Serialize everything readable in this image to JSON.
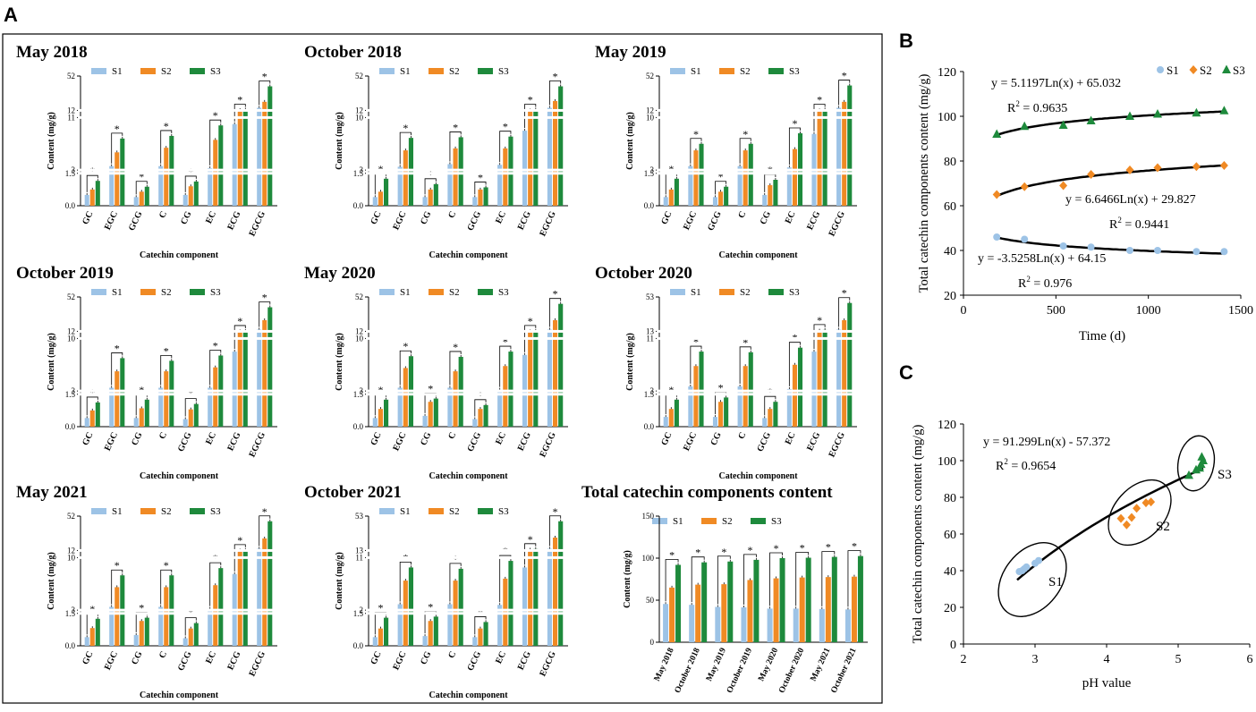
{
  "panel_labels": {
    "a": "A",
    "b": "B",
    "c": "C"
  },
  "colors": {
    "S1": "#9dc3e6",
    "S2": "#f08a24",
    "S3": "#1e8a3c",
    "fit": "#000000"
  },
  "common": {
    "ylabel": "Content (mg/g)",
    "xlabel": "Catechin component",
    "legend": [
      "S1",
      "S2",
      "S3"
    ],
    "star": "*"
  },
  "chart_data": [
    {
      "id": "may2018",
      "type": "bar",
      "title": "May 2018",
      "categories": [
        "GC",
        "EGC",
        "GCG",
        "C",
        "CG",
        "EC",
        "ECG",
        "EGCG"
      ],
      "y_ticks": [
        "52",
        "12",
        "11",
        "3",
        "1.5",
        "0.0"
      ],
      "series": [
        {
          "name": "S1",
          "values": [
            0.5,
            3.6,
            0.4,
            3.6,
            0.5,
            3.3,
            10.0,
            15.0
          ]
        },
        {
          "name": "S2",
          "values": [
            0.75,
            5.7,
            0.65,
            6.4,
            0.9,
            7.6,
            12.4,
            22.0
          ]
        },
        {
          "name": "S3",
          "values": [
            1.15,
            7.8,
            0.88,
            8.2,
            1.12,
            9.8,
            13.0,
            40.0
          ]
        }
      ]
    },
    {
      "id": "oct2018",
      "type": "bar",
      "title": "October 2018",
      "categories": [
        "GC",
        "EGC",
        "CG",
        "C",
        "GCG",
        "EC",
        "ECG",
        "EGCG"
      ],
      "y_ticks": [
        "52",
        "12",
        "10",
        "3",
        "1.5",
        "0.0"
      ],
      "series": [
        {
          "name": "S1",
          "values": [
            0.4,
            3.5,
            0.4,
            3.9,
            0.4,
            3.8,
            9.0,
            15.0
          ]
        },
        {
          "name": "S2",
          "values": [
            0.65,
            6.0,
            0.75,
            6.3,
            0.75,
            6.3,
            12.0,
            23.0
          ]
        },
        {
          "name": "S3",
          "values": [
            1.25,
            7.9,
            1.0,
            8.0,
            0.85,
            8.1,
            13.0,
            40.0
          ]
        }
      ]
    },
    {
      "id": "may2019",
      "type": "bar",
      "title": "May 2019",
      "categories": [
        "GC",
        "EGC",
        "GCG",
        "C",
        "CG",
        "EC",
        "ECG",
        "EGCG"
      ],
      "y_ticks": [
        "52",
        "12",
        "10",
        "3",
        "1.5",
        "0.0"
      ],
      "series": [
        {
          "name": "S1",
          "values": [
            0.4,
            3.6,
            0.4,
            3.6,
            0.5,
            3.4,
            8.5,
            15.0
          ]
        },
        {
          "name": "S2",
          "values": [
            0.75,
            6.0,
            0.65,
            6.0,
            0.95,
            6.2,
            12.0,
            22.0
          ]
        },
        {
          "name": "S3",
          "values": [
            1.25,
            7.0,
            0.88,
            7.0,
            1.2,
            8.6,
            13.0,
            41.0
          ]
        }
      ]
    },
    {
      "id": "oct2019",
      "type": "bar",
      "title": "October 2019",
      "categories": [
        "GC",
        "EGC",
        "CG",
        "C",
        "GCG",
        "EC",
        "ECG",
        "EGCG"
      ],
      "y_ticks": [
        "52",
        "12",
        "10",
        "3",
        "1.5",
        "0.0"
      ],
      "series": [
        {
          "name": "S1",
          "values": [
            0.4,
            3.5,
            0.4,
            3.5,
            0.35,
            3.5,
            9.0,
            14.0
          ]
        },
        {
          "name": "S2",
          "values": [
            0.75,
            6.0,
            0.85,
            6.0,
            0.8,
            6.6,
            12.0,
            25.0
          ]
        },
        {
          "name": "S3",
          "values": [
            1.12,
            8.0,
            1.25,
            7.6,
            1.05,
            8.4,
            12.5,
            40.0
          ]
        }
      ]
    },
    {
      "id": "may2020",
      "type": "bar",
      "title": "May 2020",
      "categories": [
        "GC",
        "EGC",
        "CG",
        "C",
        "GCG",
        "EC",
        "ECG",
        "EGCG"
      ],
      "y_ticks": [
        "52",
        "12",
        "10",
        "3",
        "1.5",
        "0.0"
      ],
      "series": [
        {
          "name": "S1",
          "values": [
            0.4,
            3.5,
            0.5,
            3.5,
            0.35,
            3.2,
            8.5,
            14.0
          ]
        },
        {
          "name": "S2",
          "values": [
            0.82,
            6.5,
            1.15,
            6.0,
            0.82,
            6.8,
            12.0,
            25.0
          ]
        },
        {
          "name": "S3",
          "values": [
            1.25,
            8.3,
            1.3,
            8.2,
            1.0,
            9.0,
            12.6,
            44.0
          ]
        }
      ]
    },
    {
      "id": "oct2020",
      "type": "bar",
      "title": "October 2020",
      "categories": [
        "GC",
        "EGC",
        "CG",
        "C",
        "GCG",
        "EC",
        "ECG",
        "EGCG"
      ],
      "y_ticks": [
        "53",
        "13",
        "11",
        "3",
        "1.5",
        "0.0"
      ],
      "series": [
        {
          "name": "S1",
          "values": [
            0.45,
            3.7,
            0.45,
            3.7,
            0.4,
            3.3,
            9.0,
            14.0
          ]
        },
        {
          "name": "S2",
          "values": [
            0.82,
            6.8,
            1.15,
            6.8,
            0.82,
            7.0,
            12.8,
            25.0
          ]
        },
        {
          "name": "S3",
          "values": [
            1.25,
            9.0,
            1.35,
            8.9,
            1.15,
            9.6,
            13.6,
            45.0
          ]
        }
      ]
    },
    {
      "id": "may2021",
      "type": "bar",
      "title": "May 2021",
      "categories": [
        "GC",
        "EGC",
        "CG",
        "C",
        "GCG",
        "EC",
        "ECG",
        "EGCG"
      ],
      "y_ticks": [
        "52",
        "12",
        "10",
        "3",
        "1.5",
        "0.0"
      ],
      "series": [
        {
          "name": "S1",
          "values": [
            0.4,
            3.5,
            0.5,
            3.5,
            0.35,
            3.2,
            8.5,
            14.0
          ]
        },
        {
          "name": "S2",
          "values": [
            0.82,
            6.5,
            1.15,
            6.5,
            0.8,
            6.8,
            12.0,
            26.0
          ]
        },
        {
          "name": "S3",
          "values": [
            1.25,
            8.3,
            1.3,
            8.3,
            1.05,
            9.4,
            12.6,
            46.0
          ]
        }
      ]
    },
    {
      "id": "oct2021",
      "type": "bar",
      "title": "October 2021",
      "categories": [
        "GC",
        "EGC",
        "CG",
        "C",
        "GCG",
        "EC",
        "ECG",
        "EGCG"
      ],
      "y_ticks": [
        "53",
        "13",
        "11",
        "2",
        "1.5",
        "0.0"
      ],
      "series": [
        {
          "name": "S1",
          "values": [
            0.4,
            3.9,
            0.45,
            3.9,
            0.4,
            3.8,
            9.5,
            14.0
          ]
        },
        {
          "name": "S2",
          "values": [
            0.8,
            7.5,
            1.15,
            7.5,
            0.8,
            7.8,
            13.0,
            27.0
          ]
        },
        {
          "name": "S3",
          "values": [
            1.3,
            9.5,
            1.35,
            9.3,
            1.1,
            10.5,
            13.7,
            46.0
          ]
        }
      ]
    },
    {
      "id": "total",
      "type": "bar",
      "title": "Total catechin components content",
      "categories": [
        "May 2018",
        "October 2018",
        "May 2019",
        "October 2019",
        "May 2020",
        "October 2020",
        "May 2021",
        "October 2021"
      ],
      "y_ticks": [
        "150",
        "100",
        "50",
        "0"
      ],
      "ylim": [
        0,
        150
      ],
      "series": [
        {
          "name": "S1",
          "values": [
            45.5,
            44.5,
            42.0,
            41.5,
            40.0,
            40.0,
            39.5,
            39.0
          ]
        },
        {
          "name": "S2",
          "values": [
            65.0,
            68.5,
            69.0,
            74.0,
            76.0,
            77.0,
            77.5,
            78.0
          ]
        },
        {
          "name": "S3",
          "values": [
            92.0,
            95.0,
            96.0,
            98.0,
            100.0,
            100.5,
            101.5,
            102.5
          ]
        }
      ]
    },
    {
      "id": "time",
      "type": "scatter",
      "xlabel": "Time (d)",
      "ylabel": "Total catechin components content (mg/g)",
      "xlim": [
        0,
        1500
      ],
      "ylim": [
        20,
        120
      ],
      "x_ticks": [
        "0",
        "500",
        "1000",
        "1500"
      ],
      "y_ticks": [
        "20",
        "40",
        "60",
        "80",
        "100",
        "120"
      ],
      "legend": [
        "S1",
        "S2",
        "S3"
      ],
      "series": [
        {
          "name": "S1",
          "x": [
            180,
            330,
            540,
            690,
            900,
            1050,
            1260,
            1410
          ],
          "y": [
            46,
            45,
            42,
            41.5,
            40,
            40,
            39.5,
            39.5
          ]
        },
        {
          "name": "S2",
          "x": [
            180,
            330,
            540,
            690,
            900,
            1050,
            1260,
            1410
          ],
          "y": [
            65,
            68.5,
            69,
            74,
            76,
            77,
            77.5,
            78
          ]
        },
        {
          "name": "S3",
          "x": [
            180,
            330,
            540,
            690,
            900,
            1050,
            1260,
            1410
          ],
          "y": [
            92,
            95.5,
            96,
            98,
            100,
            101,
            101.5,
            102.5
          ]
        }
      ],
      "fits": [
        {
          "series": "S3",
          "a": 5.1197,
          "b": 65.032
        },
        {
          "series": "S2",
          "a": 6.6466,
          "b": 29.827
        },
        {
          "series": "S1",
          "a": -3.5258,
          "b": 64.15
        }
      ],
      "annotations": {
        "s3_eq": "y = 5.1197Ln(x) + 65.032",
        "s3_r2": "R",
        "s3_r2v": " = 0.9635",
        "s2_eq": "y = 6.6466Ln(x) + 29.827",
        "s2_r2": "R",
        "s2_r2v": " = 0.9441",
        "s1_eq": "y = -3.5258Ln(x) + 64.15",
        "s1_r2": "R",
        "s1_r2v": " = 0.976",
        "sup": "2"
      }
    },
    {
      "id": "ph",
      "type": "scatter",
      "xlabel": "pH value",
      "ylabel": "Total catechin components content (mg/g)",
      "xlim": [
        2,
        6
      ],
      "ylim": [
        0,
        120
      ],
      "x_ticks": [
        "2",
        "3",
        "4",
        "5",
        "6"
      ],
      "y_ticks": [
        "0",
        "20",
        "40",
        "60",
        "80",
        "100",
        "120"
      ],
      "series": [
        {
          "name": "S1",
          "x": [
            2.78,
            2.82,
            2.85,
            2.88,
            3.0,
            3.05
          ],
          "y": [
            39.5,
            40,
            41,
            42,
            44,
            45.5
          ]
        },
        {
          "name": "S2",
          "x": [
            4.2,
            4.28,
            4.35,
            4.42,
            4.55,
            4.62
          ],
          "y": [
            68.5,
            65,
            69,
            74,
            77,
            77.5
          ]
        },
        {
          "name": "S3",
          "x": [
            5.15,
            5.25,
            5.3,
            5.32,
            5.35,
            5.33
          ],
          "y": [
            92,
            95,
            96,
            98,
            100,
            102
          ]
        }
      ],
      "fit": {
        "a": 91.299,
        "b": -57.372
      },
      "annotations": {
        "eq": "y = 91.299Ln(x) - 57.372",
        "r2": "R",
        "r2v": " = 0.9654",
        "sup": "2",
        "c1": "S1",
        "c2": "S2",
        "c3": "S3"
      }
    }
  ]
}
